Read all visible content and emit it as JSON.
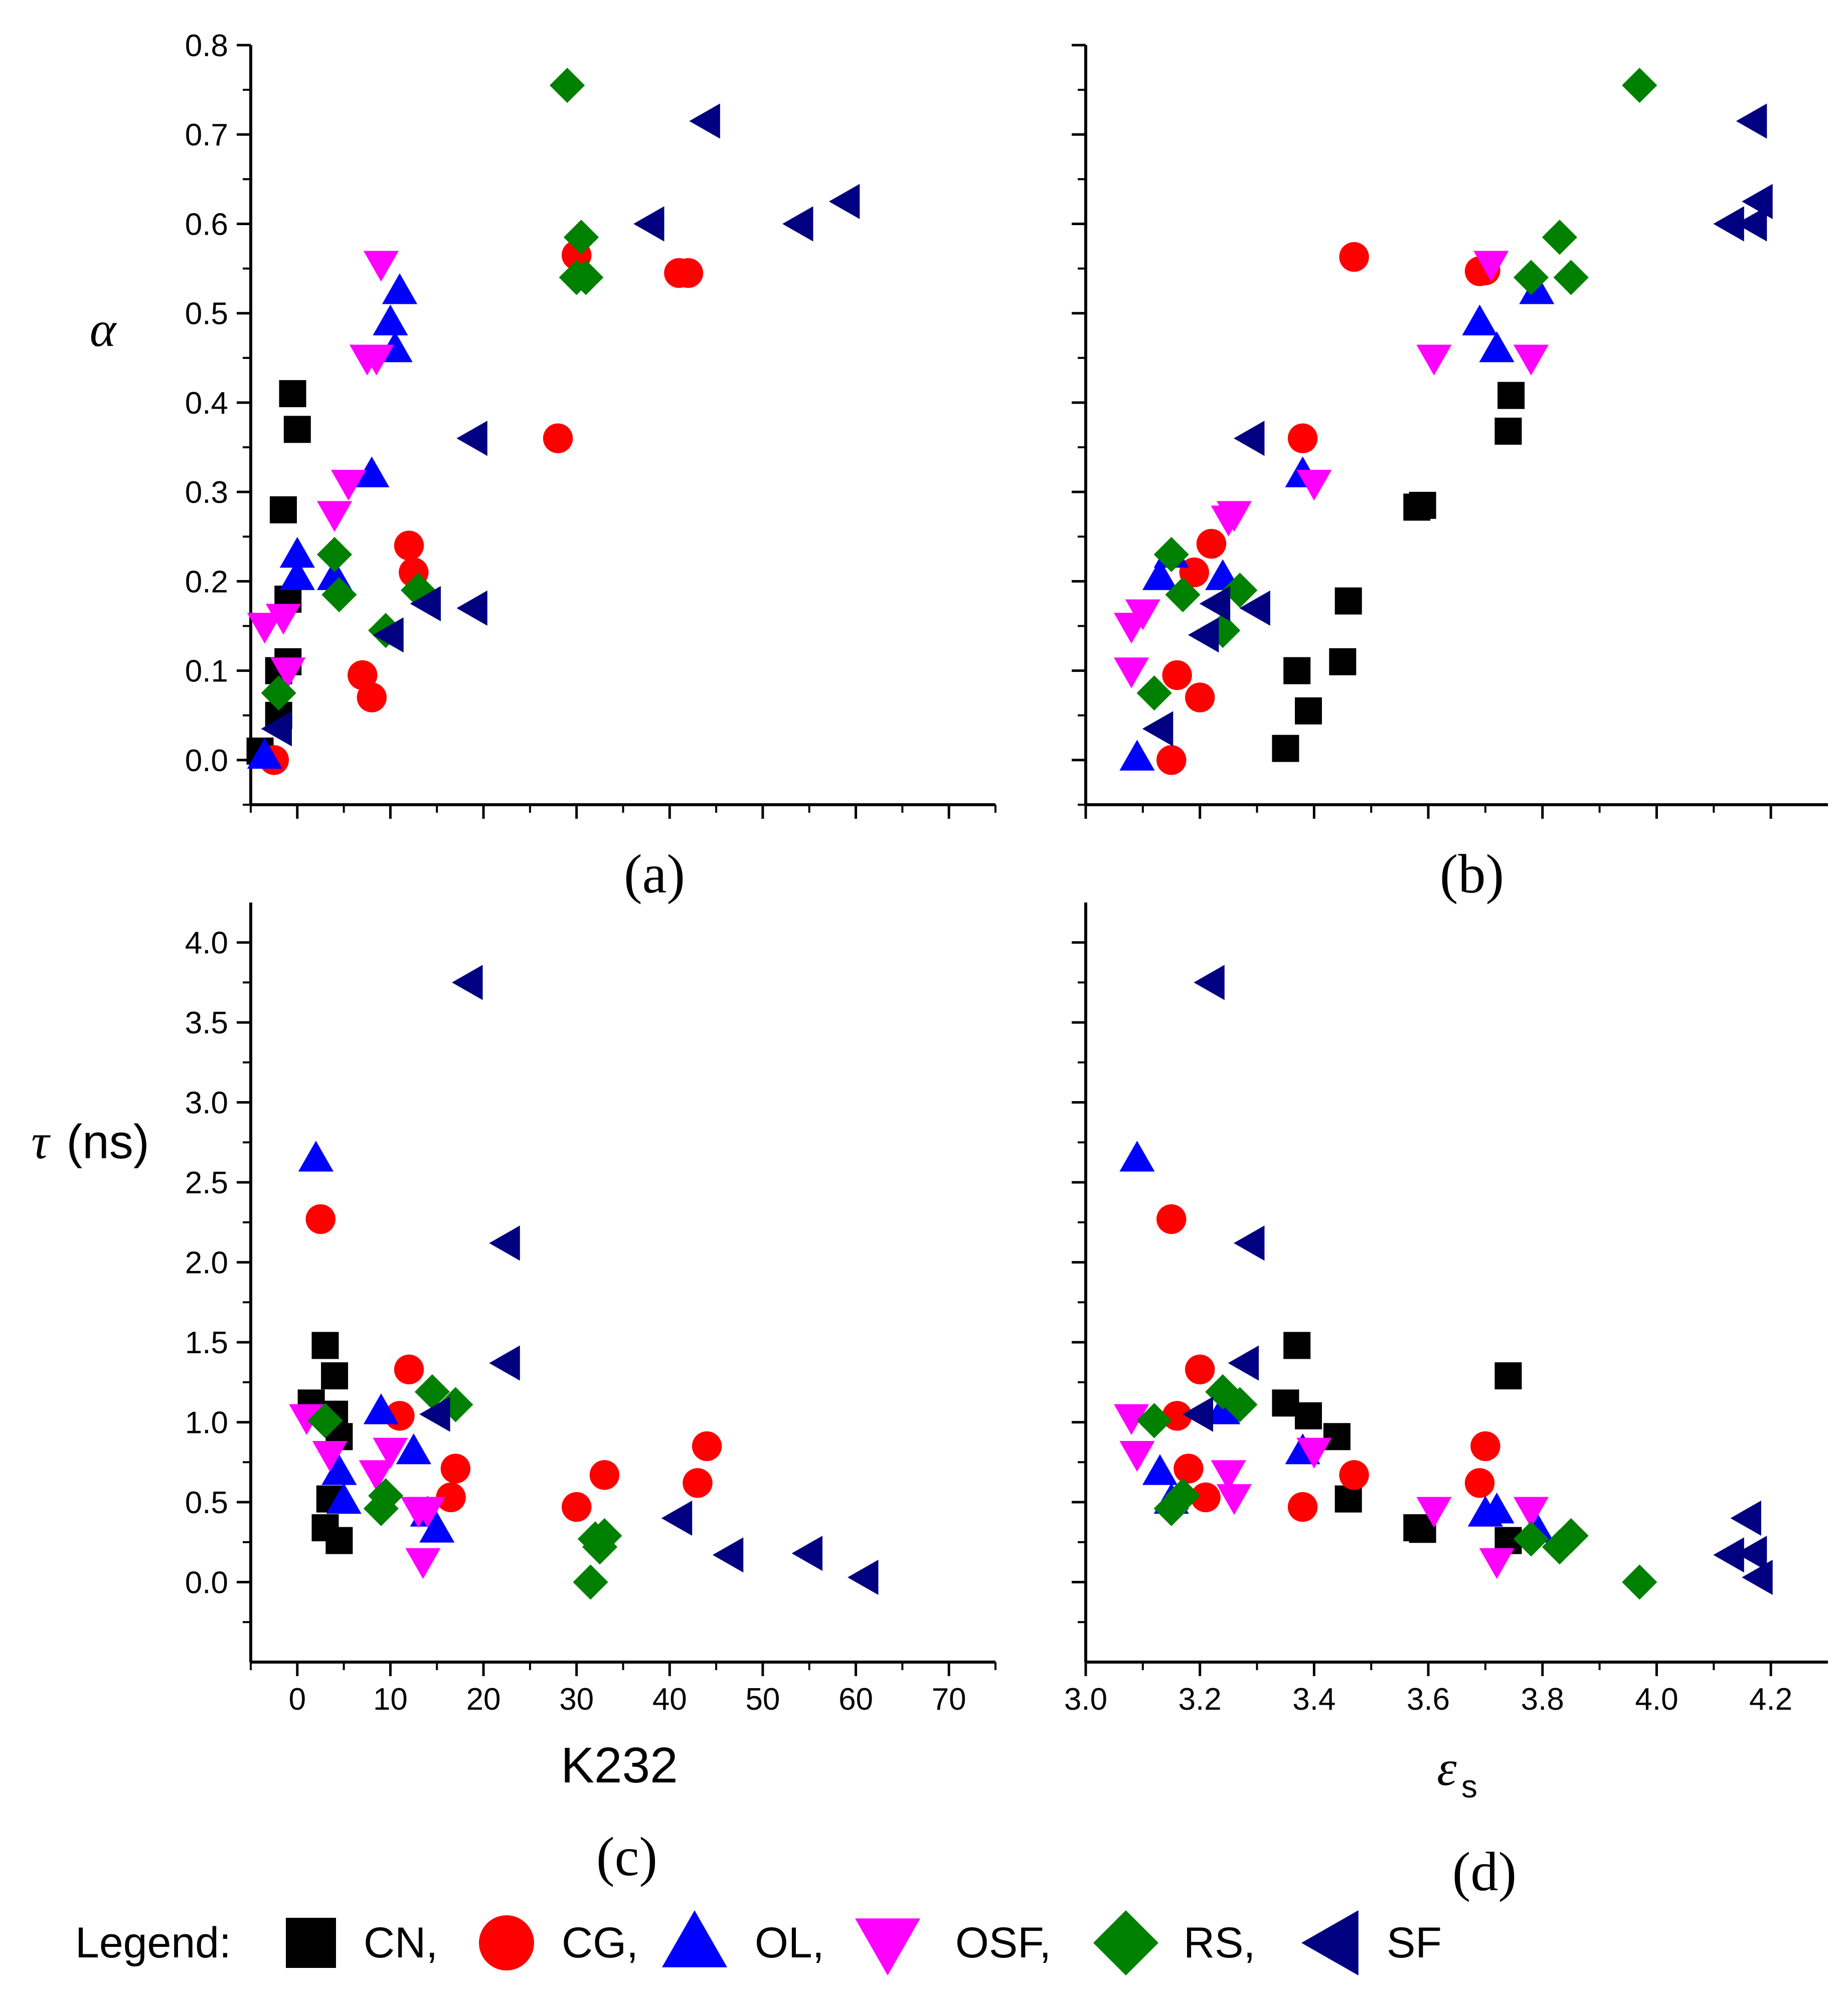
{
  "chart_data": [
    {
      "type": "scatter",
      "panel_label": "(a)",
      "xlabel": "",
      "ylabel": "α",
      "xlim": [
        -5,
        75
      ],
      "ylim": [
        -0.05,
        0.8
      ],
      "xticks": [
        0,
        10,
        20,
        30,
        40,
        50,
        60,
        70
      ],
      "yticks": [
        0.0,
        0.1,
        0.2,
        0.3,
        0.4,
        0.5,
        0.6,
        0.7,
        0.8
      ],
      "xtick_labels": [
        "",
        "",
        "",
        "",
        "",
        "",
        "",
        ""
      ],
      "ytick_labels": [
        "0.0",
        "0.1",
        "0.2",
        "0.3",
        "0.4",
        "0.5",
        "0.6",
        "0.7",
        "0.8"
      ],
      "series": [
        {
          "name": "CN",
          "points": [
            [
              -4,
              0.01
            ],
            [
              -2,
              0.05
            ],
            [
              -2,
              0.1
            ],
            [
              -1,
              0.18
            ],
            [
              -1,
              0.11
            ],
            [
              -1.5,
              0.28
            ],
            [
              -0.5,
              0.41
            ],
            [
              0,
              0.37
            ]
          ]
        },
        {
          "name": "CG",
          "points": [
            [
              -2.5,
              0
            ],
            [
              7,
              0.095
            ],
            [
              8,
              0.07
            ],
            [
              12,
              0.24
            ],
            [
              12.5,
              0.21
            ],
            [
              28,
              0.36
            ],
            [
              30,
              0.565
            ],
            [
              41,
              0.545
            ],
            [
              42,
              0.545
            ]
          ]
        },
        {
          "name": "OL",
          "points": [
            [
              -3.5,
              0.005
            ],
            [
              0,
              0.23
            ],
            [
              0,
              0.205
            ],
            [
              4,
              0.205
            ],
            [
              8,
              0.32
            ],
            [
              10,
              0.49
            ],
            [
              10.5,
              0.46
            ],
            [
              11,
              0.525
            ]
          ]
        },
        {
          "name": "OSF",
          "points": [
            [
              -3.5,
              0.15
            ],
            [
              -1.5,
              0.16
            ],
            [
              -1,
              0.1
            ],
            [
              4,
              0.275
            ],
            [
              5.5,
              0.31
            ],
            [
              7.5,
              0.45
            ],
            [
              8.5,
              0.45
            ],
            [
              9,
              0.555
            ]
          ]
        },
        {
          "name": "RS",
          "points": [
            [
              -2,
              0.075
            ],
            [
              4,
              0.23
            ],
            [
              4.5,
              0.185
            ],
            [
              9.5,
              0.145
            ],
            [
              13,
              0.19
            ],
            [
              29,
              0.755
            ],
            [
              30,
              0.54
            ],
            [
              30.5,
              0.585
            ],
            [
              31,
              0.54
            ]
          ]
        },
        {
          "name": "SF",
          "points": [
            [
              -2,
              0.035
            ],
            [
              10,
              0.14
            ],
            [
              14,
              0.175
            ],
            [
              19,
              0.36
            ],
            [
              19,
              0.17
            ],
            [
              38,
              0.6
            ],
            [
              44,
              0.715
            ],
            [
              54,
              0.6
            ],
            [
              59,
              0.625
            ]
          ]
        }
      ]
    },
    {
      "type": "scatter",
      "panel_label": "(b)",
      "xlabel": "",
      "ylabel": "",
      "xlim": [
        3.0,
        4.3
      ],
      "ylim": [
        -0.05,
        0.8
      ],
      "xticks": [
        3.0,
        3.2,
        3.4,
        3.6,
        3.8,
        4.0,
        4.2
      ],
      "yticks": [
        0.0,
        0.1,
        0.2,
        0.3,
        0.4,
        0.5,
        0.6,
        0.7,
        0.8
      ],
      "xtick_labels": [
        "",
        "",
        "",
        "",
        "",
        "",
        ""
      ],
      "ytick_labels": [
        "",
        "",
        "",
        "",
        "",
        "",
        "",
        "",
        ""
      ],
      "series": [
        {
          "name": "CN",
          "points": [
            [
              3.35,
              0.013
            ],
            [
              3.39,
              0.055
            ],
            [
              3.37,
              0.1
            ],
            [
              3.45,
              0.11
            ],
            [
              3.46,
              0.178
            ],
            [
              3.58,
              0.283
            ],
            [
              3.59,
              0.285
            ],
            [
              3.74,
              0.368
            ],
            [
              3.745,
              0.408
            ]
          ]
        },
        {
          "name": "CG",
          "points": [
            [
              3.15,
              0
            ],
            [
              3.16,
              0.095
            ],
            [
              3.2,
              0.07
            ],
            [
              3.19,
              0.21
            ],
            [
              3.22,
              0.242
            ],
            [
              3.38,
              0.36
            ],
            [
              3.47,
              0.563
            ],
            [
              3.69,
              0.547
            ],
            [
              3.7,
              0.548
            ]
          ]
        },
        {
          "name": "OL",
          "points": [
            [
              3.09,
              0.003
            ],
            [
              3.13,
              0.205
            ],
            [
              3.15,
              0.23
            ],
            [
              3.24,
              0.205
            ],
            [
              3.38,
              0.32
            ],
            [
              3.69,
              0.49
            ],
            [
              3.72,
              0.46
            ],
            [
              3.79,
              0.525
            ]
          ]
        },
        {
          "name": "OSF",
          "points": [
            [
              3.08,
              0.1
            ],
            [
              3.08,
              0.15
            ],
            [
              3.1,
              0.165
            ],
            [
              3.25,
              0.27
            ],
            [
              3.26,
              0.275
            ],
            [
              3.4,
              0.31
            ],
            [
              3.61,
              0.45
            ],
            [
              3.71,
              0.555
            ],
            [
              3.78,
              0.45
            ]
          ]
        },
        {
          "name": "RS",
          "points": [
            [
              3.12,
              0.075
            ],
            [
              3.15,
              0.23
            ],
            [
              3.17,
              0.185
            ],
            [
              3.24,
              0.145
            ],
            [
              3.27,
              0.19
            ],
            [
              3.78,
              0.54
            ],
            [
              3.83,
              0.585
            ],
            [
              3.85,
              0.54
            ],
            [
              3.97,
              0.755
            ]
          ]
        },
        {
          "name": "SF",
          "points": [
            [
              3.13,
              0.035
            ],
            [
              3.21,
              0.14
            ],
            [
              3.23,
              0.175
            ],
            [
              3.3,
              0.17
            ],
            [
              3.29,
              0.36
            ],
            [
              4.13,
              0.6
            ],
            [
              4.17,
              0.6
            ],
            [
              4.18,
              0.625
            ],
            [
              4.17,
              0.715
            ]
          ]
        }
      ]
    },
    {
      "type": "scatter",
      "panel_label": "(c)",
      "xlabel": "K232",
      "ylabel": "τ",
      "ylabel_unit": "(ns)",
      "xlim": [
        -5,
        75
      ],
      "ylim": [
        -0.5,
        4.25
      ],
      "xticks": [
        0,
        10,
        20,
        30,
        40,
        50,
        60,
        70
      ],
      "yticks": [
        0.0,
        0.5,
        1.0,
        1.5,
        2.0,
        2.5,
        3.0,
        3.5,
        4.0
      ],
      "xtick_labels": [
        "0",
        "10",
        "20",
        "30",
        "40",
        "50",
        "60",
        "70"
      ],
      "ytick_labels": [
        "0.0",
        "0.5",
        "1.0",
        "1.5",
        "2.0",
        "2.5",
        "3.0",
        "3.5",
        "4.0"
      ],
      "series": [
        {
          "name": "CN",
          "points": [
            [
              1.5,
              1.12
            ],
            [
              3,
              1.48
            ],
            [
              4,
              1.29
            ],
            [
              4.5,
              0.91
            ],
            [
              3.5,
              0.52
            ],
            [
              3,
              0.34
            ],
            [
              4.5,
              0.26
            ],
            [
              4,
              1.05
            ]
          ]
        },
        {
          "name": "CG",
          "points": [
            [
              2.5,
              2.27
            ],
            [
              11,
              1.04
            ],
            [
              12,
              1.33
            ],
            [
              16.5,
              0.53
            ],
            [
              17,
              0.71
            ],
            [
              30,
              0.47
            ],
            [
              33,
              0.67
            ],
            [
              43,
              0.62
            ],
            [
              44,
              0.85
            ]
          ]
        },
        {
          "name": "OL",
          "points": [
            [
              2,
              2.65
            ],
            [
              4.5,
              0.69
            ],
            [
              5,
              0.51
            ],
            [
              9,
              1.07
            ],
            [
              12.5,
              0.82
            ],
            [
              14,
              0.43
            ],
            [
              15,
              0.33
            ]
          ]
        },
        {
          "name": "OSF",
          "points": [
            [
              1,
              1.03
            ],
            [
              3.5,
              0.8
            ],
            [
              8.5,
              0.68
            ],
            [
              10,
              0.82
            ],
            [
              13,
              0.45
            ],
            [
              13.5,
              0.13
            ],
            [
              14,
              0.45
            ]
          ]
        },
        {
          "name": "RS",
          "points": [
            [
              3,
              1.01
            ],
            [
              9,
              0.46
            ],
            [
              9.5,
              0.54
            ],
            [
              14.5,
              1.19
            ],
            [
              17,
              1.11
            ],
            [
              31.5,
              0.0
            ],
            [
              32,
              0.27
            ],
            [
              32.5,
              0.22
            ],
            [
              33,
              0.29
            ]
          ]
        },
        {
          "name": "SF",
          "points": [
            [
              15,
              1.05
            ],
            [
              18.5,
              3.75
            ],
            [
              22.5,
              2.12
            ],
            [
              22.5,
              1.37
            ],
            [
              41,
              0.4
            ],
            [
              46.5,
              0.17
            ],
            [
              55,
              0.18
            ],
            [
              61,
              0.03
            ]
          ]
        }
      ]
    },
    {
      "type": "scatter",
      "panel_label": "(d)",
      "xlabel": "ε",
      "xlabel_sub": "s",
      "ylabel": "",
      "xlim": [
        3.0,
        4.3
      ],
      "ylim": [
        -0.5,
        4.25
      ],
      "xticks": [
        3.0,
        3.2,
        3.4,
        3.6,
        3.8,
        4.0,
        4.2
      ],
      "yticks": [
        0.0,
        0.5,
        1.0,
        1.5,
        2.0,
        2.5,
        3.0,
        3.5,
        4.0
      ],
      "xtick_labels": [
        "3.0",
        "3.2",
        "3.4",
        "3.6",
        "3.8",
        "4.0",
        "4.2"
      ],
      "ytick_labels": [
        "",
        "",
        "",
        "",
        "",
        "",
        "",
        "",
        ""
      ],
      "series": [
        {
          "name": "CN",
          "points": [
            [
              3.35,
              1.12
            ],
            [
              3.37,
              1.48
            ],
            [
              3.39,
              1.04
            ],
            [
              3.44,
              0.91
            ],
            [
              3.46,
              0.52
            ],
            [
              3.58,
              0.34
            ],
            [
              3.59,
              0.33
            ],
            [
              3.74,
              0.26
            ],
            [
              3.74,
              1.29
            ]
          ]
        },
        {
          "name": "CG",
          "points": [
            [
              3.15,
              2.27
            ],
            [
              3.16,
              1.04
            ],
            [
              3.18,
              0.71
            ],
            [
              3.2,
              1.33
            ],
            [
              3.21,
              0.53
            ],
            [
              3.38,
              0.47
            ],
            [
              3.47,
              0.67
            ],
            [
              3.69,
              0.62
            ],
            [
              3.7,
              0.85
            ]
          ]
        },
        {
          "name": "OL",
          "points": [
            [
              3.09,
              2.65
            ],
            [
              3.13,
              0.69
            ],
            [
              3.15,
              0.51
            ],
            [
              3.24,
              1.07
            ],
            [
              3.38,
              0.82
            ],
            [
              3.7,
              0.43
            ],
            [
              3.72,
              0.45
            ],
            [
              3.79,
              0.33
            ]
          ]
        },
        {
          "name": "OSF",
          "points": [
            [
              3.08,
              1.03
            ],
            [
              3.09,
              0.8
            ],
            [
              3.25,
              0.68
            ],
            [
              3.26,
              0.53
            ],
            [
              3.4,
              0.82
            ],
            [
              3.61,
              0.45
            ],
            [
              3.72,
              0.13
            ],
            [
              3.78,
              0.45
            ]
          ]
        },
        {
          "name": "RS",
          "points": [
            [
              3.12,
              1.01
            ],
            [
              3.15,
              0.46
            ],
            [
              3.17,
              0.54
            ],
            [
              3.24,
              1.19
            ],
            [
              3.27,
              1.11
            ],
            [
              3.78,
              0.27
            ],
            [
              3.83,
              0.22
            ],
            [
              3.85,
              0.29
            ],
            [
              3.97,
              0.0
            ]
          ]
        },
        {
          "name": "SF",
          "points": [
            [
              3.2,
              1.05
            ],
            [
              3.22,
              3.75
            ],
            [
              3.29,
              2.12
            ],
            [
              3.28,
              1.37
            ],
            [
              4.13,
              0.17
            ],
            [
              4.16,
              0.4
            ],
            [
              4.17,
              0.18
            ],
            [
              4.18,
              0.03
            ]
          ]
        }
      ]
    }
  ],
  "legend": {
    "title": "Legend:",
    "items": [
      {
        "name": "CN",
        "label": "CN,",
        "marker": "square",
        "color": "#000000"
      },
      {
        "name": "CG",
        "label": "CG,",
        "marker": "circle",
        "color": "#ff0000"
      },
      {
        "name": "OL",
        "label": "OL,",
        "marker": "triangle-up",
        "color": "#0000ff"
      },
      {
        "name": "OSF",
        "label": "OSF,",
        "marker": "triangle-down",
        "color": "#ff00ff"
      },
      {
        "name": "RS",
        "label": "RS,",
        "marker": "diamond",
        "color": "#008000"
      },
      {
        "name": "SF",
        "label": "SF",
        "marker": "triangle-left",
        "color": "#000080"
      }
    ]
  }
}
